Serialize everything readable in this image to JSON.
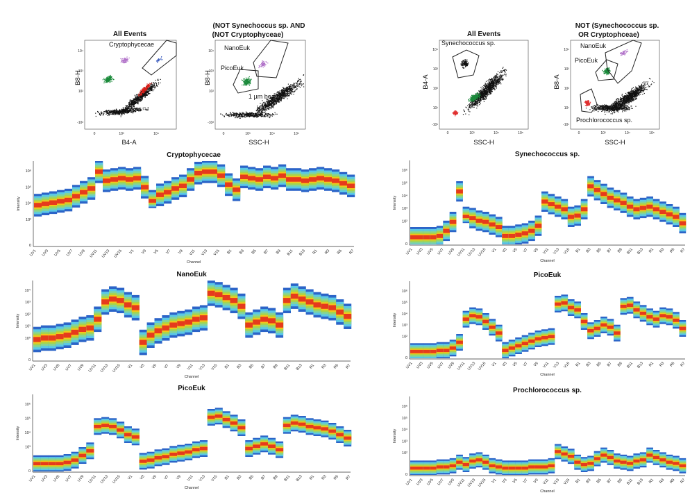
{
  "figure": {
    "left_scatter": {
      "p1": {
        "title": "All Events",
        "xlabel": "B4-A",
        "ylabel": "B8-H",
        "gate": "Cryptophycecae",
        "yticks": [
          "10⁴",
          "10³",
          "10²",
          "-10²"
        ],
        "xticks": [
          "0",
          "10³",
          "10⁴"
        ]
      },
      "p2": {
        "title_line1": "(NOT Synechoccus sp. AND",
        "title_line2": "(NOT Cryptophyceae)",
        "xlabel": "SSC-H",
        "ylabel": "B8-H",
        "gates": [
          "NanoEuk",
          "PicoEuk",
          "1 µm beads"
        ],
        "yticks": [
          "10⁴",
          "10³",
          "10²",
          "-10²"
        ],
        "xticks": [
          "0",
          "10³",
          "10⁴",
          "10⁵"
        ]
      }
    },
    "right_scatter": {
      "p3": {
        "title": "All Events",
        "xlabel": "SSC-H",
        "ylabel": "B4-A",
        "gate": "Synechococcus sp.",
        "yticks": [
          "10⁴",
          "10³",
          "10²",
          "10¹",
          "-10¹"
        ],
        "xticks": [
          "0",
          "10³",
          "10⁴",
          "10⁵"
        ]
      },
      "p4": {
        "title_line1": "NOT (Synechococcus sp.",
        "title_line2": "OR Cryptophceae)",
        "xlabel": "SSC-H",
        "ylabel": "B8-A",
        "gates": [
          "NanoEuk",
          "PicoEuk",
          "Prochlorococcus sp."
        ],
        "yticks": [
          "10⁴",
          "10³",
          "10²",
          "10¹",
          "-10¹"
        ],
        "xticks": [
          "0",
          "10³",
          "10⁴",
          "10⁵"
        ]
      }
    },
    "heatmap_common": {
      "xlabel": "Channel",
      "ylabel": "Intensity",
      "channel_labels": [
        "UV1",
        "UV3",
        "UV5",
        "UV7",
        "UV9",
        "UV11",
        "UV13",
        "UV15",
        "V1",
        "V3",
        "V5",
        "V7",
        "V9",
        "V11",
        "V13",
        "V15",
        "B1",
        "B3",
        "B5",
        "B7",
        "B9",
        "B11",
        "B13",
        "R1",
        "R3",
        "R5",
        "R7"
      ]
    }
  },
  "chart_data": [
    {
      "type": "heatmap",
      "title": "Cryptophycecae",
      "yticks": [
        "10⁶",
        "10⁵",
        "10⁴",
        "10³",
        "0"
      ],
      "ylim": [
        0,
        6
      ],
      "values": [
        3.0,
        3.1,
        3.2,
        3.3,
        3.4,
        3.7,
        4.0,
        4.3,
        5.6,
        4.9,
        5.0,
        5.1,
        5.0,
        5.1,
        4.4,
        3.3,
        3.8,
        4.0,
        4.3,
        4.5,
        5.0,
        5.5,
        5.6,
        5.6,
        5.3,
        4.6,
        4.2,
        5.2,
        5.1,
        5.0,
        5.2,
        5.1,
        5.3,
        5.0,
        5.0,
        4.9,
        5.0,
        5.1,
        5.0,
        4.9,
        4.7,
        4.5
      ],
      "spread": 0.55
    },
    {
      "type": "heatmap",
      "title": "NanoEuk",
      "yticks": [
        "10⁴",
        "10³",
        "10²",
        "10¹",
        "10⁰",
        "0"
      ],
      "ylim": [
        0,
        5
      ],
      "values": [
        1.3,
        1.4,
        1.4,
        1.5,
        1.6,
        1.8,
        2.0,
        2.1,
        2.7,
        3.9,
        4.1,
        4.0,
        3.7,
        3.5,
        1.1,
        1.6,
        1.9,
        2.1,
        2.3,
        2.4,
        2.5,
        2.7,
        2.8,
        4.5,
        4.4,
        4.2,
        4.0,
        3.6,
        2.3,
        2.5,
        2.7,
        2.6,
        2.3,
        4.0,
        4.3,
        4.1,
        3.9,
        3.7,
        3.6,
        3.5,
        3.2,
        2.9
      ],
      "spread": 0.55
    },
    {
      "type": "heatmap",
      "title": "PicoEuk",
      "yticks": [
        "10⁶",
        "10⁵",
        "10⁴",
        "10³",
        "0"
      ],
      "ylim": [
        0,
        6
      ],
      "values": [
        0.5,
        0.5,
        0.5,
        0.5,
        0.6,
        0.8,
        1.2,
        1.6,
        3.7,
        3.8,
        3.7,
        3.4,
        3.0,
        2.8,
        0.7,
        0.8,
        1.0,
        1.1,
        1.3,
        1.4,
        1.5,
        1.7,
        1.8,
        4.5,
        4.6,
        4.3,
        4.0,
        3.6,
        1.8,
        2.0,
        2.2,
        2.0,
        1.7,
        3.8,
        4.0,
        3.9,
        3.7,
        3.6,
        3.5,
        3.3,
        3.0,
        2.7
      ],
      "spread": 0.45
    },
    {
      "type": "heatmap",
      "title": "Synechococcus sp.",
      "yticks": [
        "10⁶",
        "10⁵",
        "10⁴",
        "10³",
        "10²",
        "0"
      ],
      "ylim": [
        0,
        6
      ],
      "values": [
        0.4,
        0.4,
        0.4,
        0.4,
        0.5,
        0.9,
        1.6,
        4.0,
        2.0,
        1.9,
        1.7,
        1.6,
        1.4,
        1.2,
        0.5,
        0.5,
        0.6,
        0.7,
        0.9,
        1.3,
        3.2,
        3.0,
        2.8,
        2.6,
        2.0,
        2.1,
        2.6,
        4.4,
        4.1,
        3.8,
        3.5,
        3.3,
        3.1,
        2.8,
        2.6,
        2.7,
        2.8,
        2.6,
        2.4,
        2.2,
        2.0,
        1.5
      ],
      "spread": 0.5
    },
    {
      "type": "heatmap",
      "title": "PicoEuk",
      "yticks": [
        "10⁶",
        "10⁵",
        "10⁴",
        "10³",
        "10²",
        "0"
      ],
      "ylim": [
        0,
        6
      ],
      "values": [
        0.4,
        0.4,
        0.4,
        0.4,
        0.5,
        0.5,
        0.7,
        1.2,
        3.2,
        3.5,
        3.4,
        3.0,
        2.5,
        2.0,
        0.5,
        0.7,
        0.9,
        1.1,
        1.3,
        1.5,
        1.6,
        1.7,
        4.5,
        4.6,
        4.2,
        4.0,
        3.0,
        2.2,
        2.4,
        2.7,
        2.5,
        2.0,
        4.3,
        4.4,
        4.0,
        3.7,
        3.4,
        3.2,
        3.5,
        3.4,
        3.1,
        2.4
      ],
      "spread": 0.45
    },
    {
      "type": "heatmap",
      "title": "Prochlorococcus sp.",
      "yticks": [
        "10⁶",
        "10⁵",
        "10⁴",
        "10³",
        "10²",
        "0"
      ],
      "ylim": [
        0,
        6
      ],
      "values": [
        0.4,
        0.4,
        0.4,
        0.4,
        0.5,
        0.5,
        0.6,
        0.9,
        0.7,
        1.0,
        1.1,
        0.9,
        0.6,
        0.5,
        0.4,
        0.4,
        0.4,
        0.4,
        0.5,
        0.5,
        0.5,
        0.6,
        1.8,
        1.6,
        1.4,
        0.9,
        0.7,
        0.8,
        1.2,
        1.5,
        1.3,
        1.0,
        0.9,
        0.8,
        1.0,
        1.1,
        1.5,
        1.3,
        1.1,
        0.9,
        0.8,
        0.6
      ],
      "spread": 0.4
    }
  ]
}
